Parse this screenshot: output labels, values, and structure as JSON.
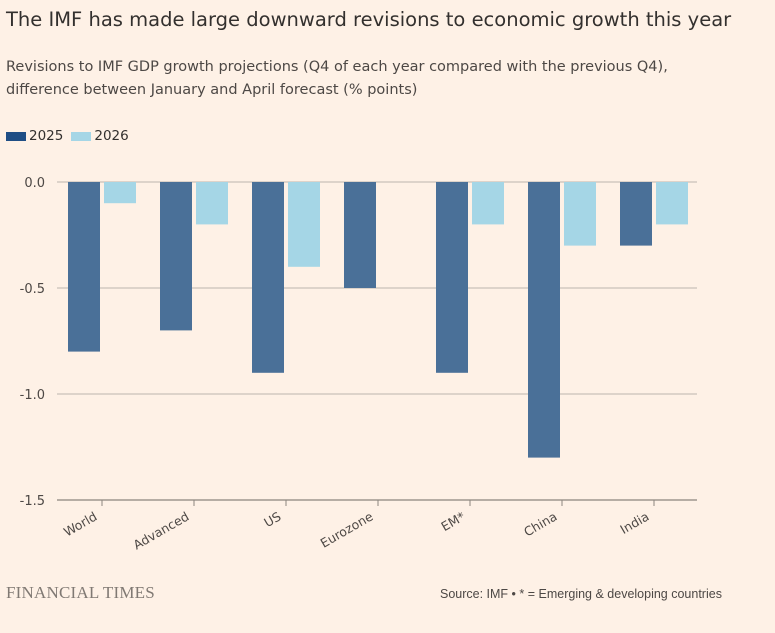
{
  "title": "The IMF has made large downward revisions to economic growth this year",
  "subtitle_line1": "Revisions to IMF GDP growth projections (Q4 of each year compared with the previous Q4),",
  "subtitle_line2": "difference between January and April forecast (% points)",
  "footer": {
    "brand": "FINANCIAL TIMES",
    "source": "Source: IMF • * = Emerging & developing countries"
  },
  "chart_data": {
    "type": "bar",
    "categories": [
      "World",
      "Advanced",
      "US",
      "Eurozone",
      "EM*",
      "China",
      "India"
    ],
    "series": [
      {
        "name": "2025",
        "color": "#4a7098",
        "legend_color": "#1f4e85",
        "values": [
          -0.8,
          -0.7,
          -0.9,
          -0.5,
          -0.9,
          -1.3,
          -0.3
        ]
      },
      {
        "name": "2026",
        "color": "#a5d6e6",
        "legend_color": "#a5d6e6",
        "values": [
          -0.1,
          -0.2,
          -0.4,
          null,
          -0.2,
          -0.3,
          -0.2
        ]
      }
    ],
    "yticks": [
      "0.0",
      "-0.5",
      "-1.0",
      "-1.5"
    ],
    "ylim": [
      -1.5,
      0
    ],
    "grid": true,
    "legend": "top-left"
  }
}
